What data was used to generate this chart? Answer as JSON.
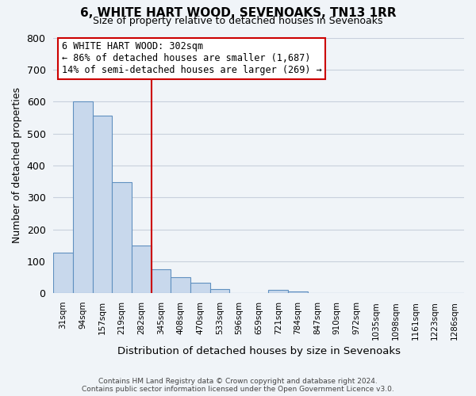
{
  "title": "6, WHITE HART WOOD, SEVENOAKS, TN13 1RR",
  "subtitle": "Size of property relative to detached houses in Sevenoaks",
  "xlabel": "Distribution of detached houses by size in Sevenoaks",
  "ylabel": "Number of detached properties",
  "footer_line1": "Contains HM Land Registry data © Crown copyright and database right 2024.",
  "footer_line2": "Contains public sector information licensed under the Open Government Licence v3.0.",
  "categories": [
    "31sqm",
    "94sqm",
    "157sqm",
    "219sqm",
    "282sqm",
    "345sqm",
    "408sqm",
    "470sqm",
    "533sqm",
    "596sqm",
    "659sqm",
    "721sqm",
    "784sqm",
    "847sqm",
    "910sqm",
    "972sqm",
    "1035sqm",
    "1098sqm",
    "1161sqm",
    "1223sqm",
    "1286sqm"
  ],
  "values": [
    128,
    600,
    555,
    348,
    150,
    75,
    50,
    32,
    12,
    0,
    0,
    10,
    5,
    0,
    0,
    0,
    0,
    0,
    0,
    0,
    0
  ],
  "bar_color": "#c8d8ec",
  "bar_edge_color": "#6090c0",
  "vline_x": 4.5,
  "vline_color": "#cc0000",
  "annotation_text": "6 WHITE HART WOOD: 302sqm\n← 86% of detached houses are smaller (1,687)\n14% of semi-detached houses are larger (269) →",
  "annotation_box_color": "#ffffff",
  "annotation_box_edge": "#cc0000",
  "ylim": [
    0,
    800
  ],
  "yticks": [
    0,
    100,
    200,
    300,
    400,
    500,
    600,
    700,
    800
  ],
  "grid_color": "#c8d0dc",
  "background_color": "#f0f4f8",
  "plot_bg_color": "#f0f4f8"
}
